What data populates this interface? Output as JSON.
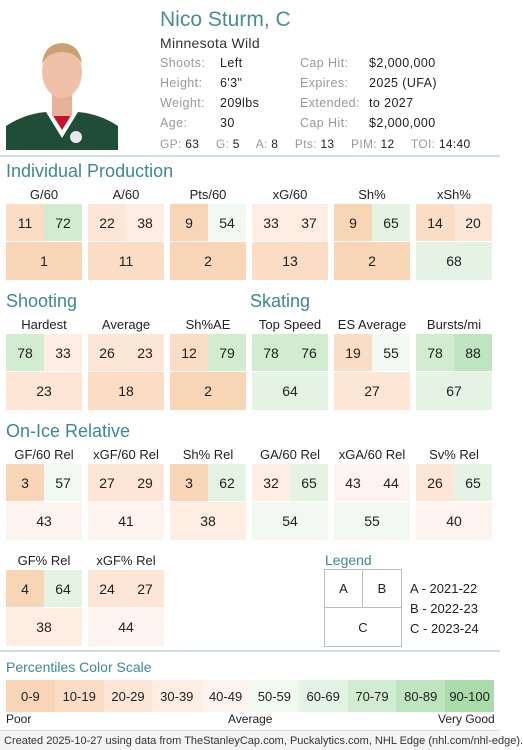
{
  "player": {
    "name": "Nico Sturm, C",
    "team": "Minnesota Wild",
    "left_info": [
      {
        "label": "Shoots:",
        "value": "Left"
      },
      {
        "label": "Height:",
        "value": "6'3\""
      },
      {
        "label": "Weight:",
        "value": "209lbs"
      },
      {
        "label": "Age:",
        "value": "30"
      }
    ],
    "right_info": [
      {
        "label": "Cap Hit:",
        "value": "$2,000,000"
      },
      {
        "label": "Expires:",
        "value": "2025 (UFA)"
      },
      {
        "label": "Extended:",
        "value": "to 2027"
      },
      {
        "label": "Cap Hit:",
        "value": "$2,000,000"
      }
    ],
    "statline": [
      {
        "label": "GP:",
        "value": "63"
      },
      {
        "label": "G:",
        "value": "5"
      },
      {
        "label": "A:",
        "value": "8"
      },
      {
        "label": "Pts:",
        "value": "13"
      },
      {
        "label": "PIM:",
        "value": "12"
      },
      {
        "label": "TOI:",
        "value": "14:40"
      }
    ]
  },
  "sections": {
    "individual_production": "Individual Production",
    "shooting": "Shooting",
    "skating": "Skating",
    "on_ice_relative": "On-Ice Relative"
  },
  "metrics": {
    "g60": {
      "label": "G/60",
      "a": 11,
      "b": 72,
      "c": 1
    },
    "a60": {
      "label": "A/60",
      "a": 22,
      "b": 38,
      "c": 11
    },
    "pts60": {
      "label": "Pts/60",
      "a": 9,
      "b": 54,
      "c": 2
    },
    "xg60": {
      "label": "xG/60",
      "a": 33,
      "b": 37,
      "c": 13
    },
    "shpct": {
      "label": "Sh%",
      "a": 9,
      "b": 65,
      "c": 2
    },
    "xshpct": {
      "label": "xSh%",
      "a": 14,
      "b": 20,
      "c": 68
    },
    "hardest": {
      "label": "Hardest",
      "a": 78,
      "b": 33,
      "c": 23
    },
    "average": {
      "label": "Average",
      "a": 26,
      "b": 23,
      "c": 18
    },
    "shae": {
      "label": "Sh%AE",
      "a": 12,
      "b": 79,
      "c": 2
    },
    "topspeed": {
      "label": "Top Speed",
      "a": 78,
      "b": 76,
      "c": 64
    },
    "esavg": {
      "label": "ES Average",
      "a": 19,
      "b": 55,
      "c": 27
    },
    "bursts": {
      "label": "Bursts/mi",
      "a": 78,
      "b": 88,
      "c": 67
    },
    "gf60rel": {
      "label": "GF/60 Rel",
      "a": 3,
      "b": 57,
      "c": 43
    },
    "xgf60rel": {
      "label": "xGF/60 Rel",
      "a": 27,
      "b": 29,
      "c": 41
    },
    "shrel": {
      "label": "Sh% Rel",
      "a": 3,
      "b": 62,
      "c": 38
    },
    "ga60rel": {
      "label": "GA/60 Rel",
      "a": 32,
      "b": 65,
      "c": 54
    },
    "xga60rel": {
      "label": "xGA/60 Rel",
      "a": 43,
      "b": 44,
      "c": 55
    },
    "svrel": {
      "label": "Sv% Rel",
      "a": 26,
      "b": 65,
      "c": 40
    },
    "gfpctrel": {
      "label": "GF% Rel",
      "a": 4,
      "b": 64,
      "c": 38
    },
    "xgfpctrel": {
      "label": "xGF% Rel",
      "a": 24,
      "b": 27,
      "c": 44
    }
  },
  "legend": {
    "title": "Legend",
    "a": "A",
    "b": "B",
    "c": "C",
    "lines": [
      "A - 2021-22",
      "B - 2022-23",
      "C - 2023-24"
    ]
  },
  "scale": {
    "title": "Percentiles Color Scale",
    "cells": [
      "0-9",
      "10-19",
      "20-29",
      "30-39",
      "40-49",
      "50-59",
      "60-69",
      "70-79",
      "80-89",
      "90-100"
    ],
    "poor": "Poor",
    "average": "Average",
    "very_good": "Very Good"
  },
  "colors": {
    "scale": [
      "#f9d5b8",
      "#fbddc6",
      "#fde6d6",
      "#fdede3",
      "#fdf4ef",
      "#f2f8f2",
      "#e4f3e3",
      "#d2ecd2",
      "#bfe4c0",
      "#a9dbab"
    ],
    "accent": "#3f8792"
  },
  "footer": "Created 2025-10-27 using data from TheStanleyCap.com, Puckalytics.com, NHL Edge (nhl.com/nhl-edge)."
}
